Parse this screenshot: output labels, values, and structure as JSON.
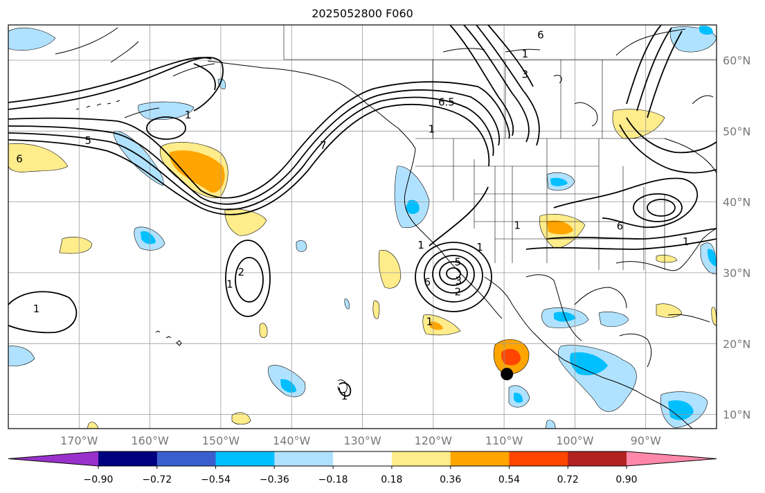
{
  "title": "2025052800 F060",
  "map": {
    "lon_range": [
      -180,
      -80
    ],
    "lat_range": [
      8,
      65
    ],
    "gridlines": true,
    "lon_ticks": [
      {
        "value": -170,
        "label": "170°W"
      },
      {
        "value": -160,
        "label": "160°W"
      },
      {
        "value": -150,
        "label": "150°W"
      },
      {
        "value": -140,
        "label": "140°W"
      },
      {
        "value": -130,
        "label": "130°W"
      },
      {
        "value": -120,
        "label": "120°W"
      },
      {
        "value": -110,
        "label": "110°W"
      },
      {
        "value": -100,
        "label": "100°W"
      },
      {
        "value": -90,
        "label": "90°W"
      }
    ],
    "lat_ticks": [
      {
        "value": 10,
        "label": "10°N"
      },
      {
        "value": 20,
        "label": "20°N"
      },
      {
        "value": 30,
        "label": "30°N"
      },
      {
        "value": 40,
        "label": "40°N"
      },
      {
        "value": 50,
        "label": "50°N"
      },
      {
        "value": 60,
        "label": "60°N"
      }
    ],
    "marker": {
      "name": "storm-center",
      "lon": -109.4,
      "lat": 15.6,
      "color": "#000000"
    }
  },
  "colorbar": {
    "colors": [
      "#9932cc",
      "#000080",
      "#3a5fcd",
      "#00bfff",
      "#b0e2ff",
      "#ffffff",
      "#ffec8b",
      "#ffa500",
      "#ff4500",
      "#b22222",
      "#ff88aa"
    ],
    "tick_labels": [
      "−0.90",
      "−0.72",
      "−0.54",
      "−0.36",
      "−0.18",
      "0.18",
      "0.36",
      "0.54",
      "0.72",
      "0.90"
    ]
  },
  "contour_labels": [
    {
      "text": "6.5",
      "lon": -119.3,
      "lat": 53.8
    },
    {
      "text": "1",
      "lon": -120.7,
      "lat": 50.0
    },
    {
      "text": "7",
      "lon": -136.0,
      "lat": 47.7
    },
    {
      "text": "1",
      "lon": -108.6,
      "lat": 36.4
    },
    {
      "text": "3",
      "lon": -107.5,
      "lat": 57.7
    },
    {
      "text": "1",
      "lon": -107.5,
      "lat": 60.6
    },
    {
      "text": "6",
      "lon": -105.3,
      "lat": 63.3
    },
    {
      "text": "1",
      "lon": -122.2,
      "lat": 33.6
    },
    {
      "text": "5",
      "lon": -117.0,
      "lat": 31.2
    },
    {
      "text": "3",
      "lon": -116.9,
      "lat": 28.6
    },
    {
      "text": "2",
      "lon": -117.0,
      "lat": 27.0
    },
    {
      "text": "1",
      "lon": -113.9,
      "lat": 33.3
    },
    {
      "text": "6",
      "lon": -121.3,
      "lat": 28.4
    },
    {
      "text": "2",
      "lon": -147.6,
      "lat": 29.8
    },
    {
      "text": "1",
      "lon": -149.2,
      "lat": 28.1
    },
    {
      "text": "1",
      "lon": -176.5,
      "lat": 24.6
    },
    {
      "text": "1",
      "lon": -155.1,
      "lat": 52.0
    },
    {
      "text": "5",
      "lon": -169.2,
      "lat": 48.4
    },
    {
      "text": "6",
      "lon": -178.9,
      "lat": 45.8
    },
    {
      "text": "6",
      "lon": -94.1,
      "lat": 36.3
    },
    {
      "text": "1",
      "lon": -121.0,
      "lat": 22.8
    },
    {
      "text": "1",
      "lon": -84.8,
      "lat": 34.1
    },
    {
      "text": "1",
      "lon": -133.0,
      "lat": 12.3
    }
  ]
}
